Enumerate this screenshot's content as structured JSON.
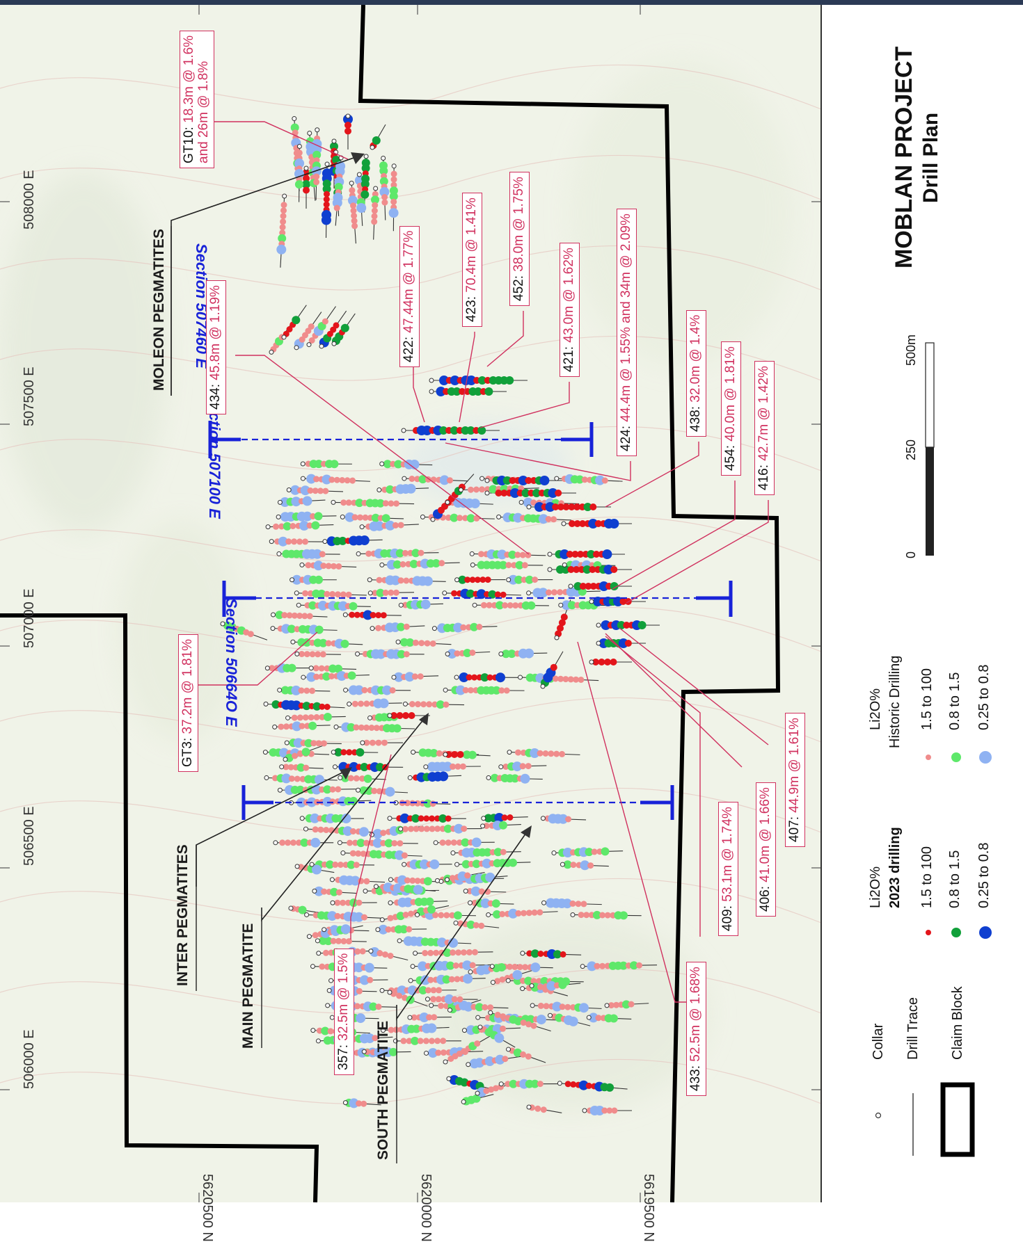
{
  "title": {
    "line1": "MOBLAN PROJECT",
    "line2": "Drill Plan"
  },
  "scale_bar": {
    "ticks": [
      "0",
      "250",
      "500m"
    ]
  },
  "legend": {
    "collar_label": "Collar",
    "trace_label": "Drill Trace",
    "claim_label": "Claim Block",
    "group_2023": {
      "header": "Li2O%",
      "subheader": "2023 drilling",
      "rows": [
        {
          "range": "1.5  to  100",
          "color": "#e3151b"
        },
        {
          "range": "0.8  to  1.5",
          "color": "#11a03a"
        },
        {
          "range": "0.25  to  0.8",
          "color": "#0f3fd0"
        }
      ]
    },
    "group_historic": {
      "header": "Li2O%",
      "subheader": "Historic Drilling",
      "rows": [
        {
          "range": "1.5  to  100",
          "color": "#f08c8c"
        },
        {
          "range": "0.8  to  1.5",
          "color": "#5ee86a"
        },
        {
          "range": "0.25  to  0.8",
          "color": "#8fb2f2"
        }
      ]
    }
  },
  "grid": {
    "eastings": [
      "508000 E",
      "507500 E",
      "507000 E",
      "506500 E",
      "506000 E"
    ],
    "northings": [
      "5620500 N",
      "5620000 N",
      "5619500 N"
    ]
  },
  "sections": [
    "Section 507460 E",
    "Section 507100 E",
    "Section 50664O E"
  ],
  "pegmatites": [
    "MOLEON PEGMATITES",
    "INTER PEGMATITES",
    "MAIN PEGMATITE",
    "SOUTH PEGMATITE"
  ],
  "callouts": [
    {
      "id": "GT10",
      "text": "GT10: 18.3m @ 1.6%",
      "text2": "and 26m @ 1.8%"
    },
    {
      "id": "434",
      "text": "434: 45.8m @ 1.19%"
    },
    {
      "id": "422",
      "text": "422: 47.44m @ 1.77%"
    },
    {
      "id": "423",
      "text": "423: 70.4m @ 1.41%"
    },
    {
      "id": "452",
      "text": "452: 38.0m @ 1.75%"
    },
    {
      "id": "421",
      "text": "421: 43.0m @ 1.62%"
    },
    {
      "id": "424",
      "text": "424: 44.4m @ 1.55% and 34m @ 2.09%"
    },
    {
      "id": "438",
      "text": "438: 32.0m @ 1.4%"
    },
    {
      "id": "454",
      "text": "454: 40.0m @ 1.81%"
    },
    {
      "id": "416",
      "text": "416: 42.7m @ 1.42%"
    },
    {
      "id": "GT3",
      "text": "GT3: 37.2m @ 1.81%"
    },
    {
      "id": "357",
      "text": "357: 32.5m @ 1.5%"
    },
    {
      "id": "433",
      "text": "433: 52.5m @ 1.68%"
    },
    {
      "id": "409",
      "text": "409: 53.1m @ 1.74%"
    },
    {
      "id": "406",
      "text": "406: 41.0m @ 1.66%"
    },
    {
      "id": "407",
      "text": "407: 44.9m @ 1.61%"
    }
  ],
  "colors": {
    "map_bg": "#eef2e6",
    "claim": "#000000",
    "section": "#1822d8",
    "callout": "#d0305e",
    "historic_high": "#f08c8c",
    "historic_mid": "#5ee86a",
    "historic_low": "#8fb2f2",
    "new_high": "#e3151b",
    "new_mid": "#11a03a",
    "new_low": "#0f3fd0"
  }
}
